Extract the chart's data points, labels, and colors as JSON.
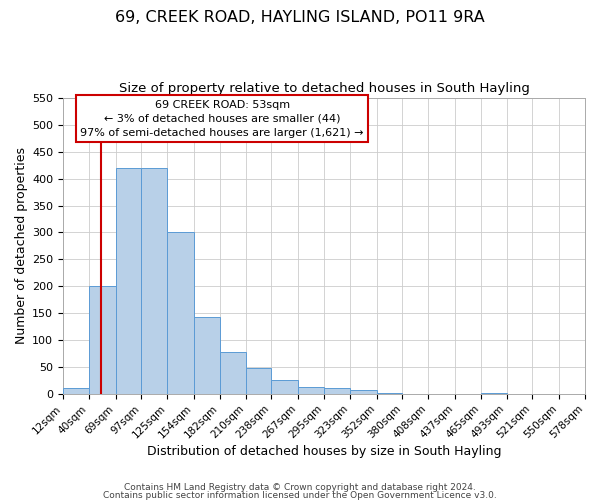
{
  "title": "69, CREEK ROAD, HAYLING ISLAND, PO11 9RA",
  "subtitle": "Size of property relative to detached houses in South Hayling",
  "xlabel": "Distribution of detached houses by size in South Hayling",
  "ylabel": "Number of detached properties",
  "bar_heights": [
    10,
    200,
    420,
    420,
    300,
    143,
    78,
    48,
    25,
    12,
    10,
    7,
    2,
    0,
    0,
    0,
    2,
    0,
    0,
    0
  ],
  "bin_edges": [
    12,
    40,
    69,
    97,
    125,
    154,
    182,
    210,
    238,
    267,
    295,
    323,
    352,
    380,
    408,
    437,
    465,
    493,
    521,
    550,
    578
  ],
  "tick_labels": [
    "12sqm",
    "40sqm",
    "69sqm",
    "97sqm",
    "125sqm",
    "154sqm",
    "182sqm",
    "210sqm",
    "238sqm",
    "267sqm",
    "295sqm",
    "323sqm",
    "352sqm",
    "380sqm",
    "408sqm",
    "437sqm",
    "465sqm",
    "493sqm",
    "521sqm",
    "550sqm",
    "578sqm"
  ],
  "ylim": [
    0,
    550
  ],
  "yticks": [
    0,
    50,
    100,
    150,
    200,
    250,
    300,
    350,
    400,
    450,
    500,
    550
  ],
  "bar_color": "#b8d0e8",
  "bar_edge_color": "#5b9bd5",
  "vline_x": 53,
  "vline_color": "#cc0000",
  "annotation_title": "69 CREEK ROAD: 53sqm",
  "annotation_line1": "← 3% of detached houses are smaller (44)",
  "annotation_line2": "97% of semi-detached houses are larger (1,621) →",
  "annotation_box_color": "#ffffff",
  "annotation_box_edge": "#cc0000",
  "footer1": "Contains HM Land Registry data © Crown copyright and database right 2024.",
  "footer2": "Contains public sector information licensed under the Open Government Licence v3.0.",
  "background_color": "#ffffff",
  "grid_color": "#cccccc",
  "title_fontsize": 11.5,
  "subtitle_fontsize": 9.5,
  "axis_label_fontsize": 9,
  "tick_fontsize": 7.5,
  "annotation_fontsize": 8,
  "footer_fontsize": 6.5
}
